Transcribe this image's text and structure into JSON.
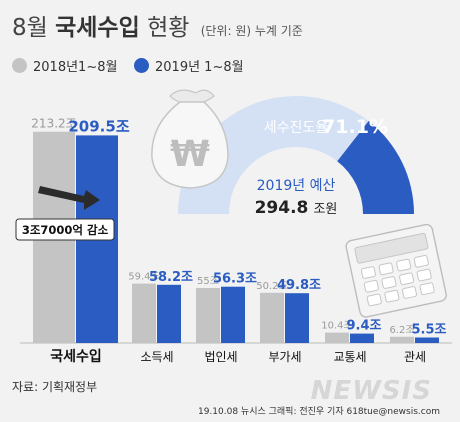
{
  "header": {
    "title_month": "8월",
    "title_main": "국세수입",
    "title_tail": "현황",
    "unit_note": "(단위: 원) 누계 기준"
  },
  "legend": {
    "series_2018": "2018년1~8월",
    "series_2019": "2019년  1~8월"
  },
  "colors": {
    "series_2018": "#c4c4c4",
    "series_2019": "#2a5cc2",
    "gauge_fill": "#2a5cc2",
    "gauge_rest": "#d4e1f4"
  },
  "chart_data": {
    "type": "bar",
    "categories": [
      "국세수입",
      "소득세",
      "법인세",
      "부가세",
      "교통세",
      "관세"
    ],
    "series": [
      {
        "name": "2018년1~8월",
        "values": [
          213.2,
          59.4,
          55.0,
          50.2,
          10.4,
          6.2
        ]
      },
      {
        "name": "2019년  1~8월",
        "values": [
          209.5,
          58.2,
          56.3,
          49.8,
          9.4,
          5.5
        ]
      }
    ],
    "value_labels_2018": [
      "213.2조",
      "59.4조",
      "55조",
      "50.2조",
      "10.4조",
      "6.2조"
    ],
    "value_labels_2019": [
      "209.5조",
      "58.2조",
      "56.3조",
      "49.8조",
      "9.4조",
      "5.5조"
    ],
    "unit": "조 원",
    "annotation": "3조7000억 감소",
    "ylim": [
      0,
      220
    ]
  },
  "gauge": {
    "label": "세수진도율",
    "value_text": "71.1%",
    "progress_percent": 71.1,
    "budget_label": "2019년 예산",
    "budget_value": "294.8",
    "budget_unit": "조원",
    "money_symbol": "₩"
  },
  "footer": {
    "source": "자료: 기획재정부",
    "credit": "19.10.08  뉴시스  그래픽: 전진우 기자 618tue@newsis.com",
    "watermark": "NEWSIS"
  }
}
